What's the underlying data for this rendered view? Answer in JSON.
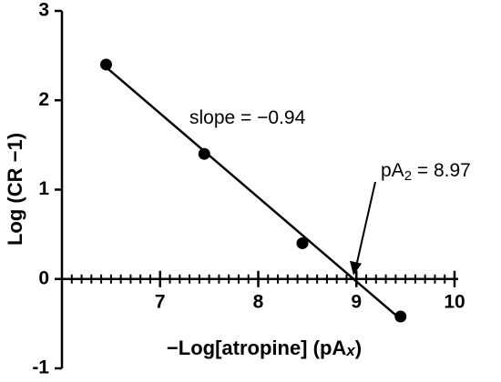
{
  "chart_data": {
    "type": "scatter",
    "x": [
      6.45,
      7.45,
      8.45,
      9.45
    ],
    "values": [
      2.4,
      1.4,
      0.4,
      -0.42
    ],
    "color": "#000000",
    "fit_line": {
      "x": [
        6.45,
        9.45
      ],
      "y": [
        2.37,
        -0.45
      ]
    },
    "xlim": [
      6,
      10
    ],
    "ylim": [
      -1,
      3
    ],
    "xticks": [
      7,
      8,
      9,
      10
    ],
    "x_minor_step": 0.1,
    "yticks": [
      -1,
      0,
      1,
      2,
      3
    ],
    "y_label": "Log (CR −1)",
    "x_label": {
      "main": "−Log[atropine]  (pA",
      "italic": "x",
      "end": ")"
    },
    "slope_annotation": {
      "text": "slope = ",
      "value": "−0.94"
    },
    "pA2_annotation": {
      "main": "pA",
      "sub": "2",
      "rest": " = 8.97",
      "value": 8.97
    }
  }
}
